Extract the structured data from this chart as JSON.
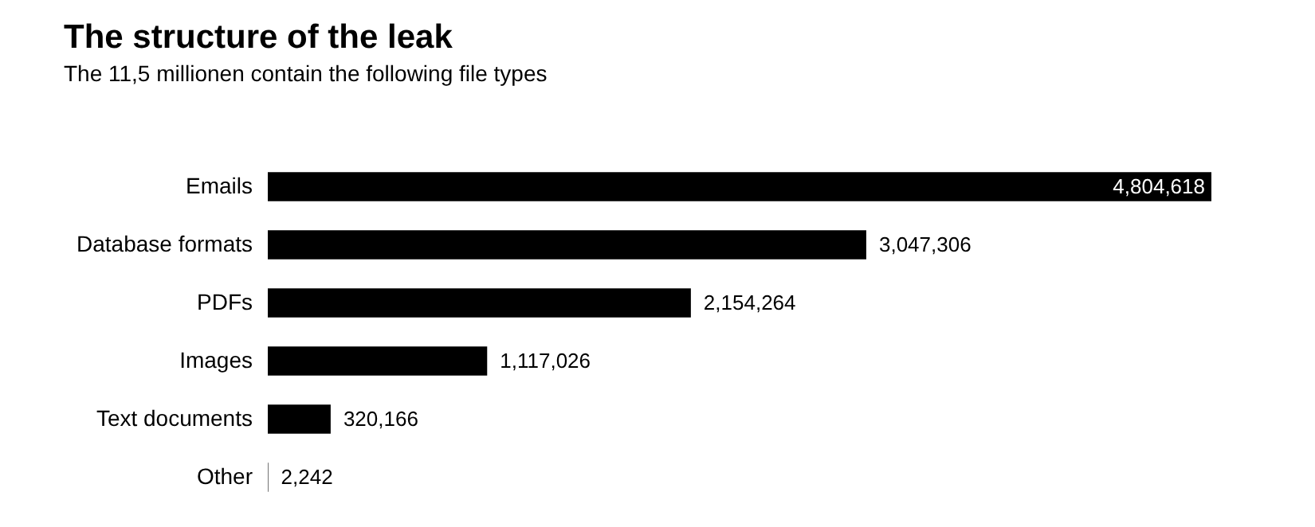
{
  "chart_data": {
    "type": "bar",
    "orientation": "horizontal",
    "title": "The structure of the leak",
    "subtitle": "The 11,5 millionen contain the following file types",
    "categories": [
      "Emails",
      "Database formats",
      "PDFs",
      "Images",
      "Text documents",
      "Other"
    ],
    "values": [
      4804618,
      3047306,
      2154264,
      1117026,
      320166,
      2242
    ],
    "value_labels": [
      "4,804,618",
      "3,047,306",
      "2,154,264",
      "1,117,026",
      "320,166",
      "2,242"
    ],
    "color": "#000000"
  }
}
